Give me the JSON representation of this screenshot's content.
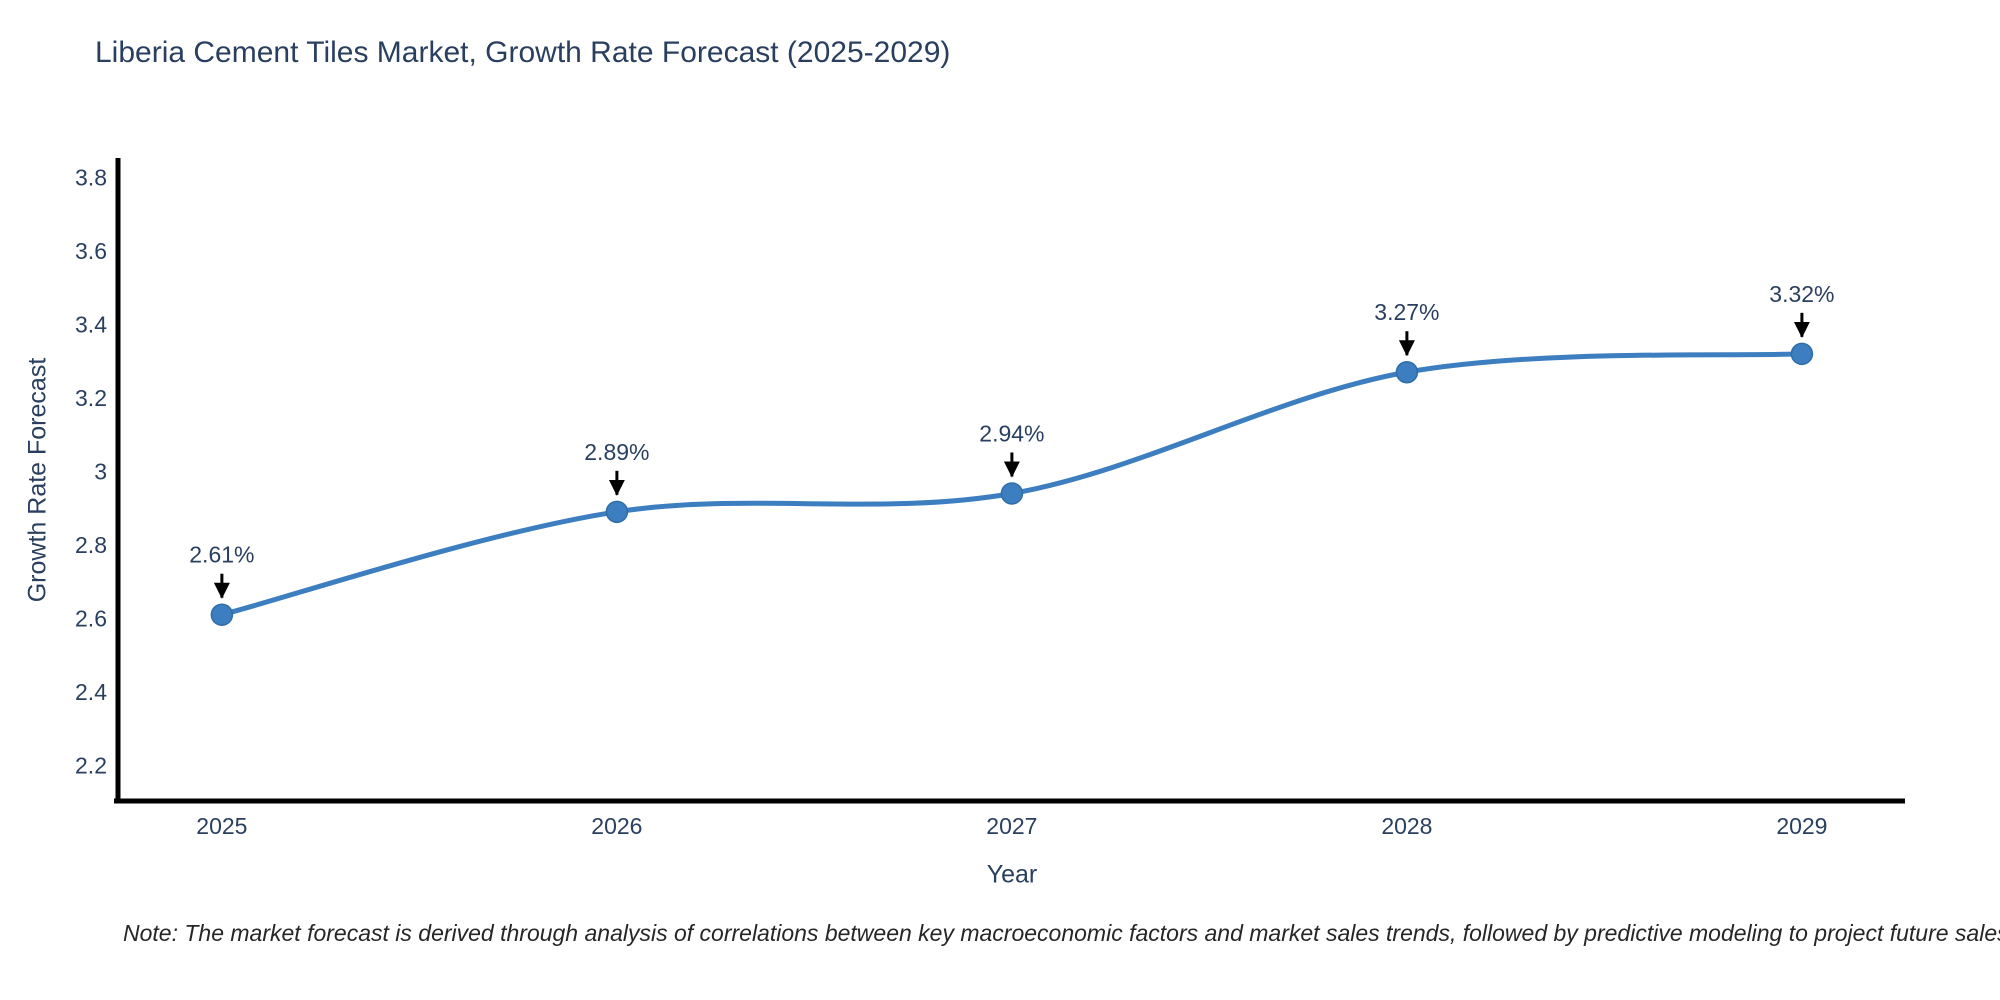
{
  "page": {
    "title": "Liberia Cement Tiles Market, Growth Rate Forecast (2025-2029)",
    "note": "Note: The market forecast is derived through analysis of correlations between key macroeconomic factors and market sales trends, followed by predictive modeling to project future sales"
  },
  "chart_data": {
    "type": "line",
    "title": "Liberia Cement Tiles Market, Growth Rate Forecast (2025-2029)",
    "xlabel": "Year",
    "ylabel": "Growth Rate Forecast",
    "x": [
      2025,
      2026,
      2027,
      2028,
      2029
    ],
    "series": [
      {
        "name": "Growth Rate Forecast",
        "values": [
          2.61,
          2.89,
          2.94,
          3.27,
          3.32
        ]
      }
    ],
    "point_labels": [
      "2.61%",
      "2.89%",
      "2.94%",
      "3.27%",
      "3.32%"
    ],
    "ytick_labels": [
      "2.2",
      "2.4",
      "2.6",
      "2.8",
      "3",
      "3.2",
      "3.4",
      "3.6",
      "3.8"
    ],
    "ytick_values": [
      2.2,
      2.4,
      2.6,
      2.8,
      3.0,
      3.2,
      3.4,
      3.6,
      3.8
    ],
    "xlim": [
      2024.737,
      2029.261
    ],
    "ylim": [
      2.103,
      3.853
    ],
    "grid": false,
    "legend": false,
    "line_shape": "spline",
    "colors": {
      "line": "#3c7ebf",
      "marker": "#3c7ebf",
      "marker_edge": "#2f6da8",
      "axis": "#000000",
      "tick_text": "#2a3f5f",
      "annotation_text": "#2a3f5f",
      "arrow": "#000000",
      "note_text": "#262626",
      "background": "#ffffff"
    }
  }
}
